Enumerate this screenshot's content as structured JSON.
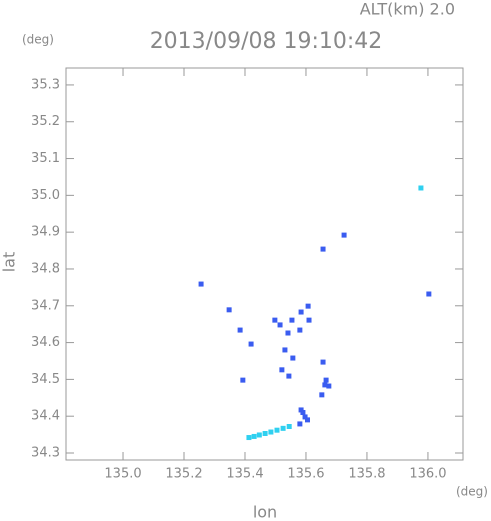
{
  "chart_data": {
    "type": "scatter",
    "title": "2013/09/08 19:10:42",
    "subtitle": "ALT(km) 2.0",
    "y_unit": "(deg)",
    "x_unit": "(deg)",
    "xlabel": "lon",
    "ylabel": "lat",
    "xlim": [
      134.813,
      136.115
    ],
    "ylim": [
      34.281,
      35.346
    ],
    "xticks": [
      {
        "value": 135,
        "label": "135.0"
      },
      135.2,
      135.4,
      135.6,
      135.8,
      {
        "value": 136,
        "label": "136.0"
      }
    ],
    "yticks": [
      34.3,
      34.4,
      34.5,
      34.6,
      34.7,
      34.8,
      34.9,
      {
        "value": 35,
        "label": "35.0"
      },
      35.1,
      35.2,
      35.3
    ],
    "series": [
      {
        "color": "#3a5cf0",
        "x": [
          135.725,
          135.656,
          135.256,
          136.003,
          135.348,
          135.384,
          135.42,
          135.393,
          135.498,
          135.515,
          135.554,
          135.584,
          135.607,
          135.61,
          135.58,
          135.541,
          135.531,
          135.557,
          135.521,
          135.544,
          135.656,
          135.662,
          135.666,
          135.652,
          135.675,
          135.584,
          135.597,
          135.58,
          135.59,
          135.605
        ],
        "values": [
          34.892,
          34.854,
          34.759,
          34.732,
          34.689,
          34.634,
          34.596,
          34.498,
          34.661,
          34.648,
          34.661,
          34.683,
          34.699,
          34.661,
          34.634,
          34.626,
          34.58,
          34.558,
          34.526,
          34.509,
          34.547,
          34.485,
          34.498,
          34.458,
          34.482,
          34.417,
          34.398,
          34.379,
          34.41,
          34.39
        ]
      },
      {
        "color": "#2fd0f0",
        "x": [
          135.977,
          135.413,
          135.43,
          135.447,
          135.466,
          135.485,
          135.505,
          135.525,
          135.545
        ],
        "values": [
          35.02,
          34.342,
          34.345,
          34.349,
          34.353,
          34.357,
          34.362,
          34.367,
          34.372
        ]
      }
    ]
  }
}
